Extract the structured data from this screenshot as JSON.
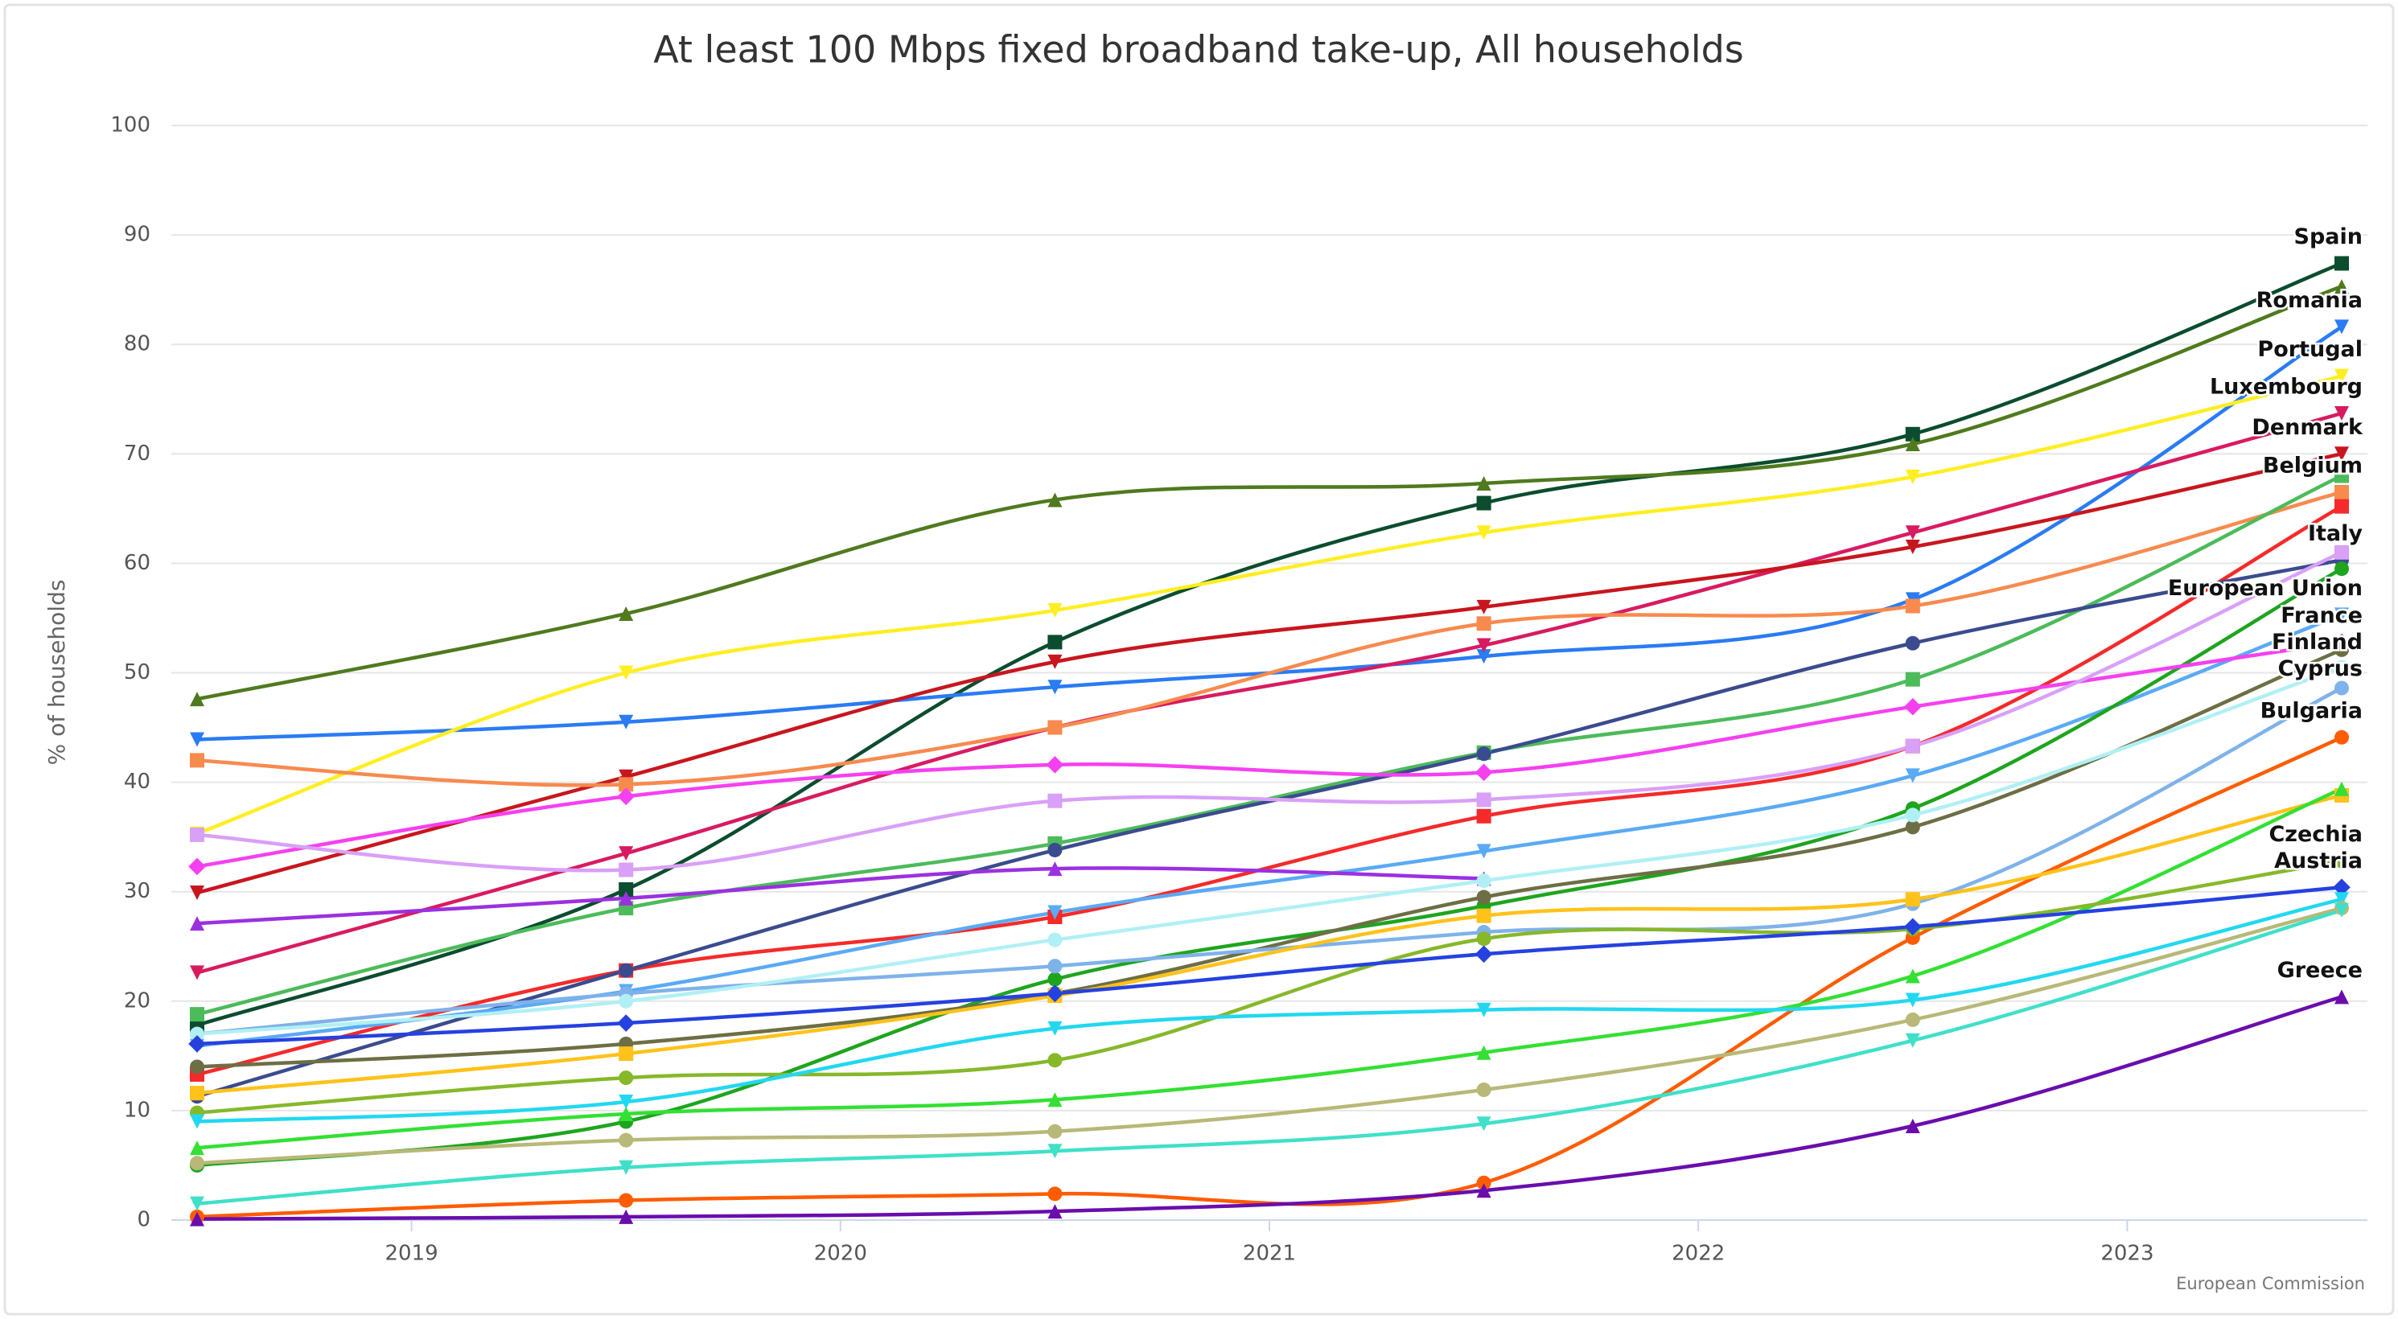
{
  "chart_data": {
    "type": "line",
    "title": "At least 100 Mbps fixed broadband take-up, All households",
    "y_label": "% of households",
    "credits": "European Commission",
    "x": [
      2018.5,
      2019.5,
      2020.5,
      2021.5,
      2022.5,
      2023.5
    ],
    "xlim": [
      2018.44,
      2023.56
    ],
    "xticks": [
      2019,
      2020,
      2021,
      2022,
      2023
    ],
    "ylim": [
      0,
      100
    ],
    "yticks": [
      0,
      10,
      20,
      30,
      40,
      50,
      60,
      70,
      80,
      90,
      100
    ],
    "grid": true,
    "series": [
      {
        "name": "Spain",
        "color": "#0b4d2e",
        "marker": "square",
        "values": [
          17.8,
          30.2,
          52.8,
          65.5,
          71.8,
          87.4
        ]
      },
      {
        "color": "#4f7a1e",
        "marker": "triangle",
        "values": [
          47.6,
          55.4,
          65.8,
          67.3,
          70.9,
          85.3
        ]
      },
      {
        "name": "Romania",
        "color": "#2a7bf4",
        "marker": "triangle-down",
        "values": [
          43.9,
          45.5,
          48.7,
          51.5,
          56.7,
          81.6
        ]
      },
      {
        "name": "Portugal",
        "color": "#ffee22",
        "marker": "triangle-down",
        "values": [
          35.3,
          50.0,
          55.7,
          62.8,
          67.9,
          77.1
        ]
      },
      {
        "name": "Luxembourg",
        "color": "#d81b60",
        "marker": "triangle-down",
        "values": [
          22.6,
          33.5,
          45.0,
          52.5,
          62.8,
          73.7
        ]
      },
      {
        "name": "Denmark",
        "color": "#c8161e",
        "marker": "triangle-down",
        "values": [
          29.9,
          40.5,
          51.0,
          56.0,
          61.5,
          70.0
        ]
      },
      {
        "name": "Belgium",
        "color": "#f88a4e",
        "marker": "square",
        "values": [
          42.0,
          39.8,
          45.0,
          54.5,
          56.1,
          66.5
        ]
      },
      {
        "color": "#f52a2a",
        "marker": "square",
        "values": [
          13.3,
          22.8,
          27.7,
          36.9,
          43.3,
          65.2
        ]
      },
      {
        "color": "#4cbb5a",
        "marker": "square",
        "values": [
          18.8,
          28.5,
          34.4,
          42.7,
          49.4,
          68.0
        ]
      },
      {
        "name": "Italy",
        "color": "#3b4b8f",
        "marker": "circle",
        "values": [
          11.3,
          22.8,
          33.8,
          42.6,
          52.7,
          60.3
        ]
      },
      {
        "name": "European Union",
        "color": "#5aaaf5",
        "marker": "triangle-down",
        "values": [
          15.9,
          20.9,
          28.1,
          33.7,
          40.6,
          55.3
        ]
      },
      {
        "color": "#1ea51e",
        "marker": "circle",
        "values": [
          5.0,
          9.0,
          22.0,
          28.7,
          37.6,
          59.5
        ]
      },
      {
        "name": "France",
        "color": "#f540f0",
        "marker": "diamond",
        "values": [
          32.3,
          38.7,
          41.6,
          40.9,
          46.9,
          52.8
        ]
      },
      {
        "name": "Finland",
        "color": "#6e6e45",
        "marker": "circle",
        "values": [
          14.0,
          16.1,
          20.7,
          29.5,
          35.9,
          52.1
        ]
      },
      {
        "color": "#d9a0f7",
        "marker": "square",
        "values": [
          35.2,
          32.0,
          38.3,
          38.4,
          43.3,
          61.0
        ]
      },
      {
        "color": "#9b30e0",
        "marker": "triangle",
        "values": [
          27.1,
          29.4,
          32.1,
          31.2,
          null,
          null
        ]
      },
      {
        "name": "Cyprus",
        "color": "#7fb2ea",
        "marker": "circle",
        "values": [
          17.0,
          20.7,
          23.2,
          26.3,
          28.9,
          48.6
        ]
      },
      {
        "color": "#b0f0f4",
        "marker": "circle",
        "values": [
          17.0,
          20.0,
          25.6,
          31.0,
          37.0,
          50.5
        ]
      },
      {
        "name": "Bulgaria",
        "color": "#ff5c00",
        "marker": "circle",
        "values": [
          0.3,
          1.8,
          2.4,
          3.4,
          25.8,
          44.1
        ]
      },
      {
        "color": "#ffc21a",
        "marker": "square",
        "values": [
          11.6,
          15.2,
          20.5,
          27.8,
          29.3,
          38.8
        ]
      },
      {
        "color": "#33e033",
        "marker": "triangle",
        "values": [
          6.6,
          9.7,
          11.0,
          15.3,
          22.3,
          39.4
        ]
      },
      {
        "name": "Czechia",
        "color": "#86b82a",
        "marker": "circle",
        "values": [
          9.8,
          13.0,
          14.6,
          25.7,
          26.6,
          32.8
        ]
      },
      {
        "name": "Austria",
        "color": "#2541e0",
        "marker": "diamond",
        "values": [
          16.1,
          18.0,
          20.7,
          24.3,
          26.8,
          30.4
        ]
      },
      {
        "color": "#22d8f0",
        "marker": "triangle-down",
        "values": [
          9.0,
          10.8,
          17.5,
          19.2,
          20.1,
          29.3
        ]
      },
      {
        "color": "#b8b878",
        "marker": "circle",
        "values": [
          5.2,
          7.3,
          8.1,
          11.9,
          18.3,
          28.5
        ]
      },
      {
        "color": "#40e0c8",
        "marker": "triangle-down",
        "values": [
          1.5,
          4.8,
          6.3,
          8.8,
          16.4,
          28.3
        ]
      },
      {
        "name": "Greece",
        "color": "#6a0dad",
        "marker": "triangle",
        "values": [
          0.1,
          0.3,
          0.8,
          2.7,
          8.6,
          20.4
        ]
      }
    ]
  }
}
